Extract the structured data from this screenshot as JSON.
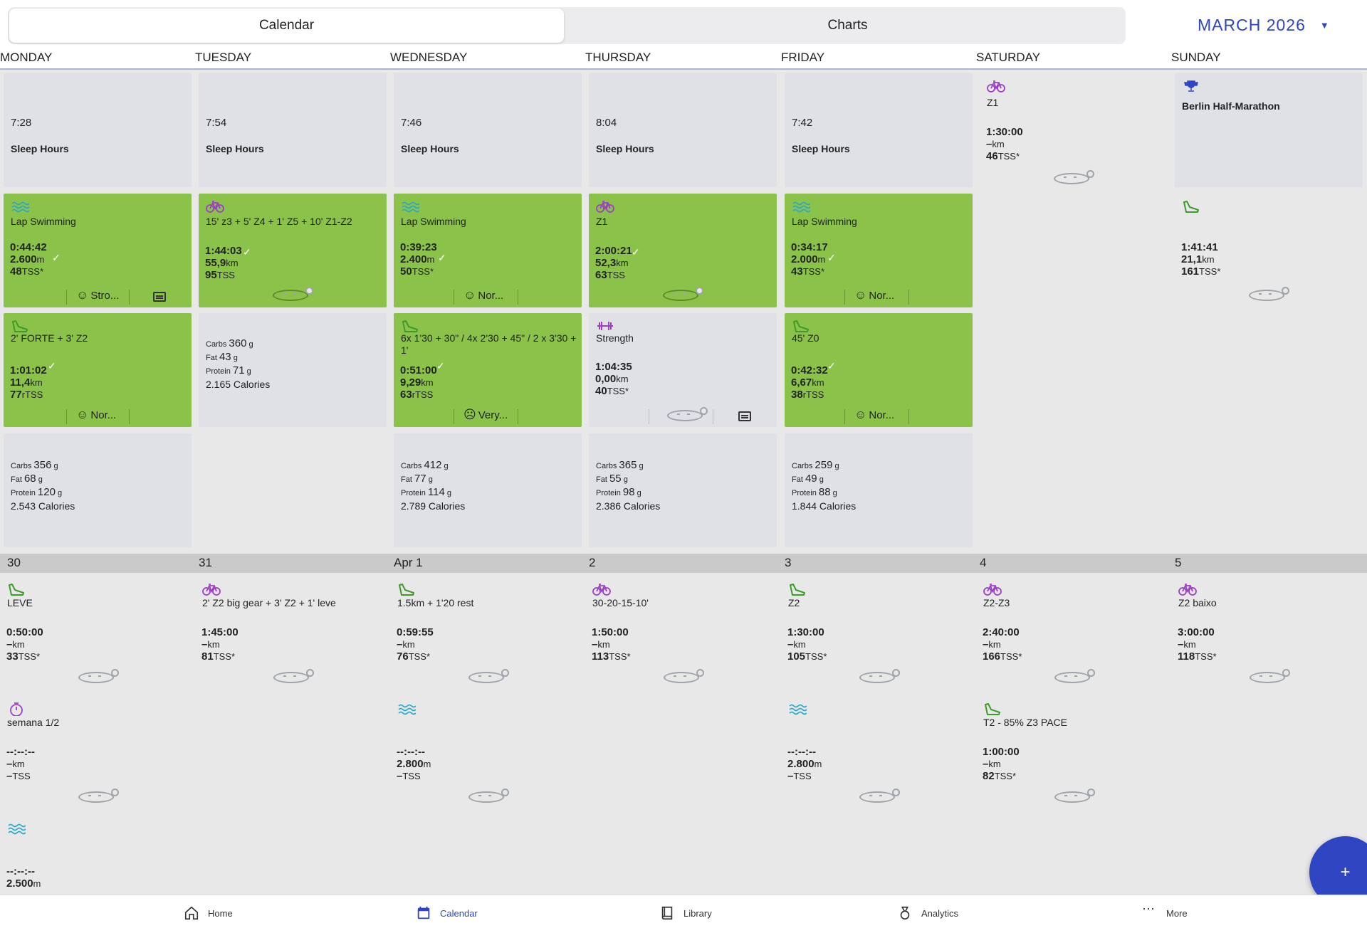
{
  "tabs": {
    "calendar": "Calendar",
    "charts": "Charts"
  },
  "month": "MARCH 2026",
  "days": [
    "MONDAY",
    "TUESDAY",
    "WEDNESDAY",
    "THURSDAY",
    "FRIDAY",
    "SATURDAY",
    "SUNDAY"
  ],
  "sleep": {
    "mon": "7:28",
    "tue": "7:54",
    "wed": "7:46",
    "thu": "8:04",
    "fri": "7:42",
    "label": "Sleep Hours"
  },
  "race": {
    "name": "Berlin Half-Marathon"
  },
  "sat_ride": {
    "title": "Z1",
    "time": "1:30:00",
    "dist": "–",
    "dunit": "km",
    "tss": "46",
    "tunit": "TSS*"
  },
  "w1r2": {
    "mon": {
      "title": "Lap Swimming",
      "time": "0:44:42",
      "dist": "2.600",
      "dunit": "m",
      "tss": "48",
      "tunit": "TSS*",
      "feel": "Stro..."
    },
    "tue": {
      "title": "15' z3 + 5' Z4 + 1' Z5 + 10' Z1-Z2",
      "time": "1:44:03",
      "dist": "55,9",
      "dunit": "km",
      "tss": "95",
      "tunit": "TSS"
    },
    "wed": {
      "title": "Lap Swimming",
      "time": "0:39:23",
      "dist": "2.400",
      "dunit": "m",
      "tss": "50",
      "tunit": "TSS*",
      "feel": "Nor..."
    },
    "thu": {
      "title": "Z1",
      "time": "2:00:21",
      "dist": "52,3",
      "dunit": "km",
      "tss": "63",
      "tunit": "TSS"
    },
    "fri": {
      "title": "Lap Swimming",
      "time": "0:34:17",
      "dist": "2.000",
      "dunit": "m",
      "tss": "43",
      "tunit": "TSS*",
      "feel": "Nor..."
    },
    "sun": {
      "title": "",
      "time": "1:41:41",
      "dist": "21,1",
      "dunit": "km",
      "tss": "161",
      "tunit": "TSS*"
    }
  },
  "w1r3": {
    "mon": {
      "title": "2' FORTE + 3' Z2",
      "time": "1:01:02",
      "dist": "11,4",
      "dunit": "km",
      "tss": "77",
      "tunit": "rTSS",
      "feel": "Nor..."
    },
    "wed": {
      "title": "6x 1'30 + 30\" / 4x 2'30 + 45\" / 2 x 3'30 + 1'",
      "time": "0:51:00",
      "dist": "9,29",
      "dunit": "km",
      "tss": "63",
      "tunit": "rTSS",
      "feel": "Very..."
    },
    "thu": {
      "title": "Strength",
      "time": "1:04:35",
      "dist": "0,00",
      "dunit": "km",
      "tss": "40",
      "tunit": "TSS*"
    },
    "fri": {
      "title": "45' Z0",
      "time": "0:42:32",
      "dist": "6,67",
      "dunit": "km",
      "tss": "38",
      "tunit": "rTSS",
      "feel": "Nor..."
    }
  },
  "nutrition": {
    "labels": {
      "carbs": "Carbs",
      "fat": "Fat",
      "protein": "Protein",
      "g": "g"
    },
    "tue": {
      "carbs": "360",
      "fat": "43",
      "protein": "71",
      "cal": "2.165 Calories"
    },
    "mon": {
      "carbs": "356",
      "fat": "68",
      "protein": "120",
      "cal": "2.543 Calories"
    },
    "wed": {
      "carbs": "412",
      "fat": "77",
      "protein": "114",
      "cal": "2.789 Calories"
    },
    "thu": {
      "carbs": "365",
      "fat": "55",
      "protein": "98",
      "cal": "2.386 Calories"
    },
    "fri": {
      "carbs": "259",
      "fat": "49",
      "protein": "88",
      "cal": "1.844 Calories"
    }
  },
  "week2": {
    "dates": [
      "30",
      "31",
      "Apr 1",
      "2",
      "3",
      "4",
      "5"
    ],
    "r1": [
      {
        "title": "LEVE",
        "time": "0:50:00",
        "dist": "–",
        "dunit": "km",
        "tss": "33",
        "tunit": "TSS*"
      },
      {
        "title": "2' Z2 big gear + 3' Z2 + 1' leve",
        "time": "1:45:00",
        "dist": "–",
        "dunit": "km",
        "tss": "81",
        "tunit": "TSS*"
      },
      {
        "title": "1.5km + 1'20 rest",
        "time": "0:59:55",
        "dist": "–",
        "dunit": "km",
        "tss": "76",
        "tunit": "TSS*"
      },
      {
        "title": "30-20-15-10'",
        "time": "1:50:00",
        "dist": "–",
        "dunit": "km",
        "tss": "113",
        "tunit": "TSS*"
      },
      {
        "title": "Z2",
        "time": "1:30:00",
        "dist": "–",
        "dunit": "km",
        "tss": "105",
        "tunit": "TSS*"
      },
      {
        "title": "Z2-Z3",
        "time": "2:40:00",
        "dist": "–",
        "dunit": "km",
        "tss": "166",
        "tunit": "TSS*"
      },
      {
        "title": "Z2 baixo",
        "time": "3:00:00",
        "dist": "–",
        "dunit": "km",
        "tss": "118",
        "tunit": "TSS*"
      }
    ],
    "r2": {
      "mon": {
        "title": "semana 1/2",
        "time": "--:--:--",
        "dist": "–",
        "dunit": "km",
        "tss": "–",
        "tunit": "TSS"
      },
      "wed": {
        "title": "",
        "time": "--:--:--",
        "dist": "2.800",
        "dunit": "m",
        "tss": "–",
        "tunit": "TSS"
      },
      "fri": {
        "title": "",
        "time": "--:--:--",
        "dist": "2.800",
        "dunit": "m",
        "tss": "–",
        "tunit": "TSS"
      },
      "sat": {
        "title": "T2 - 85% Z3 PACE",
        "time": "1:00:00",
        "dist": "–",
        "dunit": "km",
        "tss": "82",
        "tunit": "TSS*"
      }
    },
    "r3": {
      "mon": {
        "time": "--:--:--",
        "dist": "2.500",
        "dunit": "m"
      }
    }
  },
  "nav": {
    "home": "Home",
    "calendar": "Calendar",
    "library": "Library",
    "analytics": "Analytics",
    "more": "More"
  },
  "fab": "+",
  "colors": {
    "accent": "#2f45c1",
    "done": "#8bc34a",
    "bike": "#9c3fc4",
    "run": "#3e9a2a",
    "swim": "#2aa8c9"
  }
}
